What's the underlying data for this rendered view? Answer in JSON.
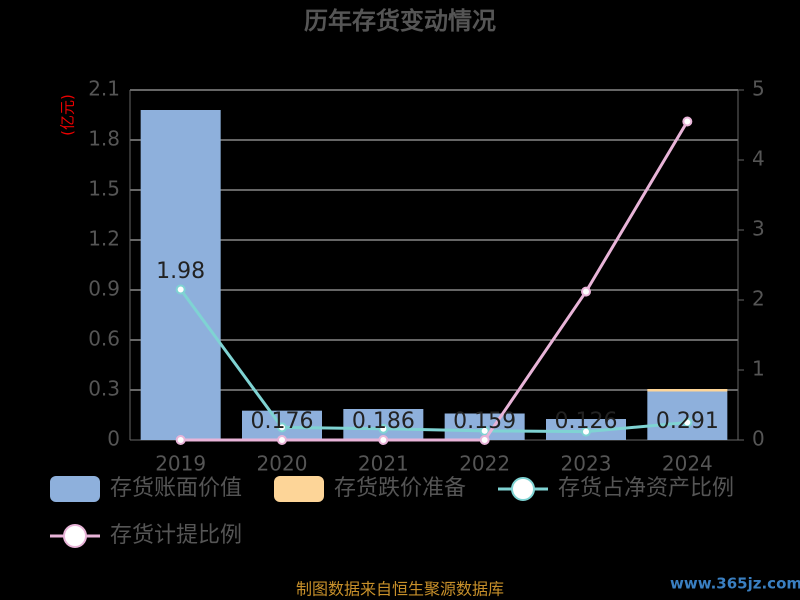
{
  "chart_data": {
    "type": "bar",
    "title": "历年存货变动情况",
    "y_axis_label": "(亿元)",
    "categories": [
      "2019",
      "2020",
      "2021",
      "2022",
      "2023",
      "2024"
    ],
    "series": [
      {
        "name": "存货账面价值",
        "color": "#8eb0dc",
        "type": "bar",
        "values": [
          1.98,
          0.176,
          0.186,
          0.159,
          0.126,
          0.291
        ]
      },
      {
        "name": "存货跌价准备",
        "color": "#fdd598",
        "type": "bar",
        "values": [
          0,
          0,
          0,
          0,
          0,
          0.015
        ]
      },
      {
        "name": "存货占净资产比例",
        "color": "#7fd3d3",
        "type": "line",
        "axis": "y2",
        "values": [
          2.15,
          0.18,
          0.16,
          0.13,
          0.12,
          0.25
        ]
      },
      {
        "name": "存货计提比例",
        "color": "#e8b4d8",
        "type": "line",
        "axis": "y2",
        "values": [
          0,
          0,
          0,
          0,
          2.12,
          4.55
        ]
      }
    ],
    "ylim": [
      0,
      2.1
    ],
    "yticks": [
      0,
      0.3,
      0.6,
      0.9,
      1.2,
      1.5,
      1.8,
      2.1
    ],
    "y2lim": [
      0,
      5
    ],
    "y2ticks": [
      0,
      1,
      2,
      3,
      4,
      5
    ],
    "grid": true,
    "source": "制图数据来自恒生聚源数据库",
    "watermark": "www.365jz.com"
  }
}
